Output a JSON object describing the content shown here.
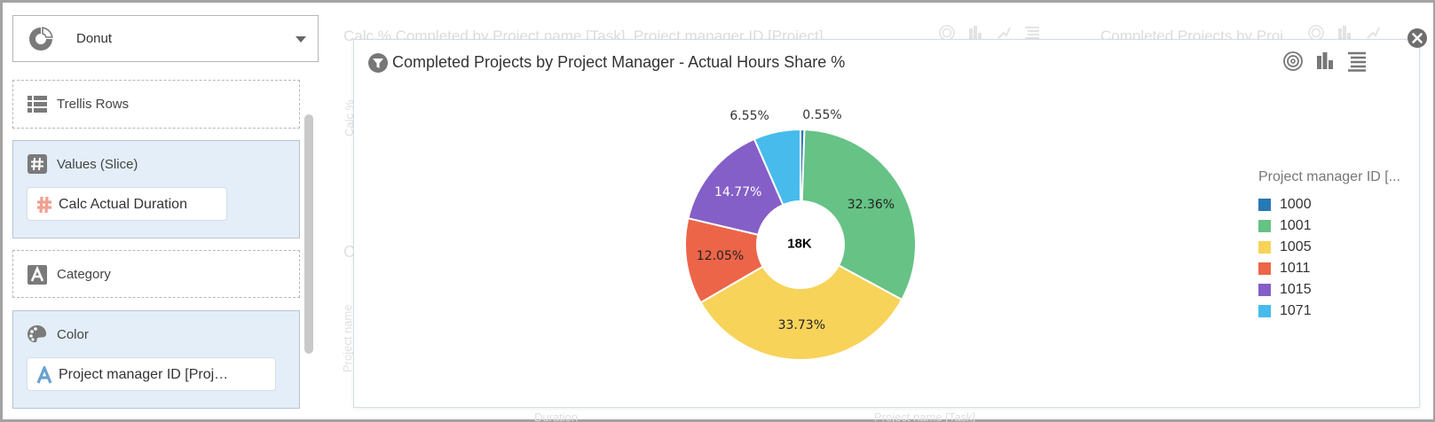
{
  "left_panel": {
    "chart_type": {
      "label": "Donut",
      "icon": "donut-chart-icon"
    },
    "drop_zones": [
      {
        "label": "Trellis Rows",
        "icon": "list-rows-icon",
        "filled": false,
        "pill": null
      },
      {
        "label": "Values (Slice)",
        "icon": "hash-icon",
        "filled": true,
        "pill": {
          "label": "Calc Actual Duration",
          "icon": "hash-icon",
          "icon_color": "#f0a090"
        }
      },
      {
        "label": "Category",
        "icon": "text-a-icon",
        "filled": false,
        "pill": null
      },
      {
        "label": "Color",
        "icon": "palette-icon",
        "filled": true,
        "pill": {
          "label": "Project manager ID [Proj…",
          "icon": "text-a-icon",
          "icon_color": "#6aa2cf"
        }
      }
    ]
  },
  "background_canvas": {
    "left_title": "Calc % Completed by Project name [Task], Project manager ID [Project]",
    "right_title": "Completed Projects by Proj…",
    "y_axis_labels": [
      "Calc %",
      "C",
      "Project name"
    ],
    "x_axis_labels": [
      "Duration",
      "Project name [Task]"
    ]
  },
  "popup": {
    "title": "Completed Projects by Project Manager - Actual Hours Share %",
    "tools": [
      "target-icon",
      "bar-chart-icon",
      "list-icon"
    ],
    "close_icon": "close-icon"
  },
  "chart_data": {
    "type": "pie",
    "variant": "donut",
    "title": "Completed Projects by Project Manager - Actual Hours Share %",
    "center_label": "18K",
    "legend_title": "Project manager ID [...",
    "legend_position": "right",
    "categories": [
      "1000",
      "1001",
      "1005",
      "1011",
      "1015",
      "1071"
    ],
    "values": [
      0.55,
      32.36,
      33.73,
      12.05,
      14.77,
      6.55
    ],
    "labels": [
      "0.55%",
      "32.36%",
      "33.73%",
      "12.05%",
      "14.77%",
      "6.55%"
    ],
    "colors": [
      "#2878b4",
      "#66c285",
      "#f8d35a",
      "#ec6549",
      "#845fc7",
      "#47bcec"
    ],
    "label_colors": [
      "#333333",
      "#222222",
      "#222222",
      "#222222",
      "#ffffff",
      "#333333"
    ],
    "label_outside": [
      true,
      false,
      false,
      false,
      false,
      true
    ]
  }
}
